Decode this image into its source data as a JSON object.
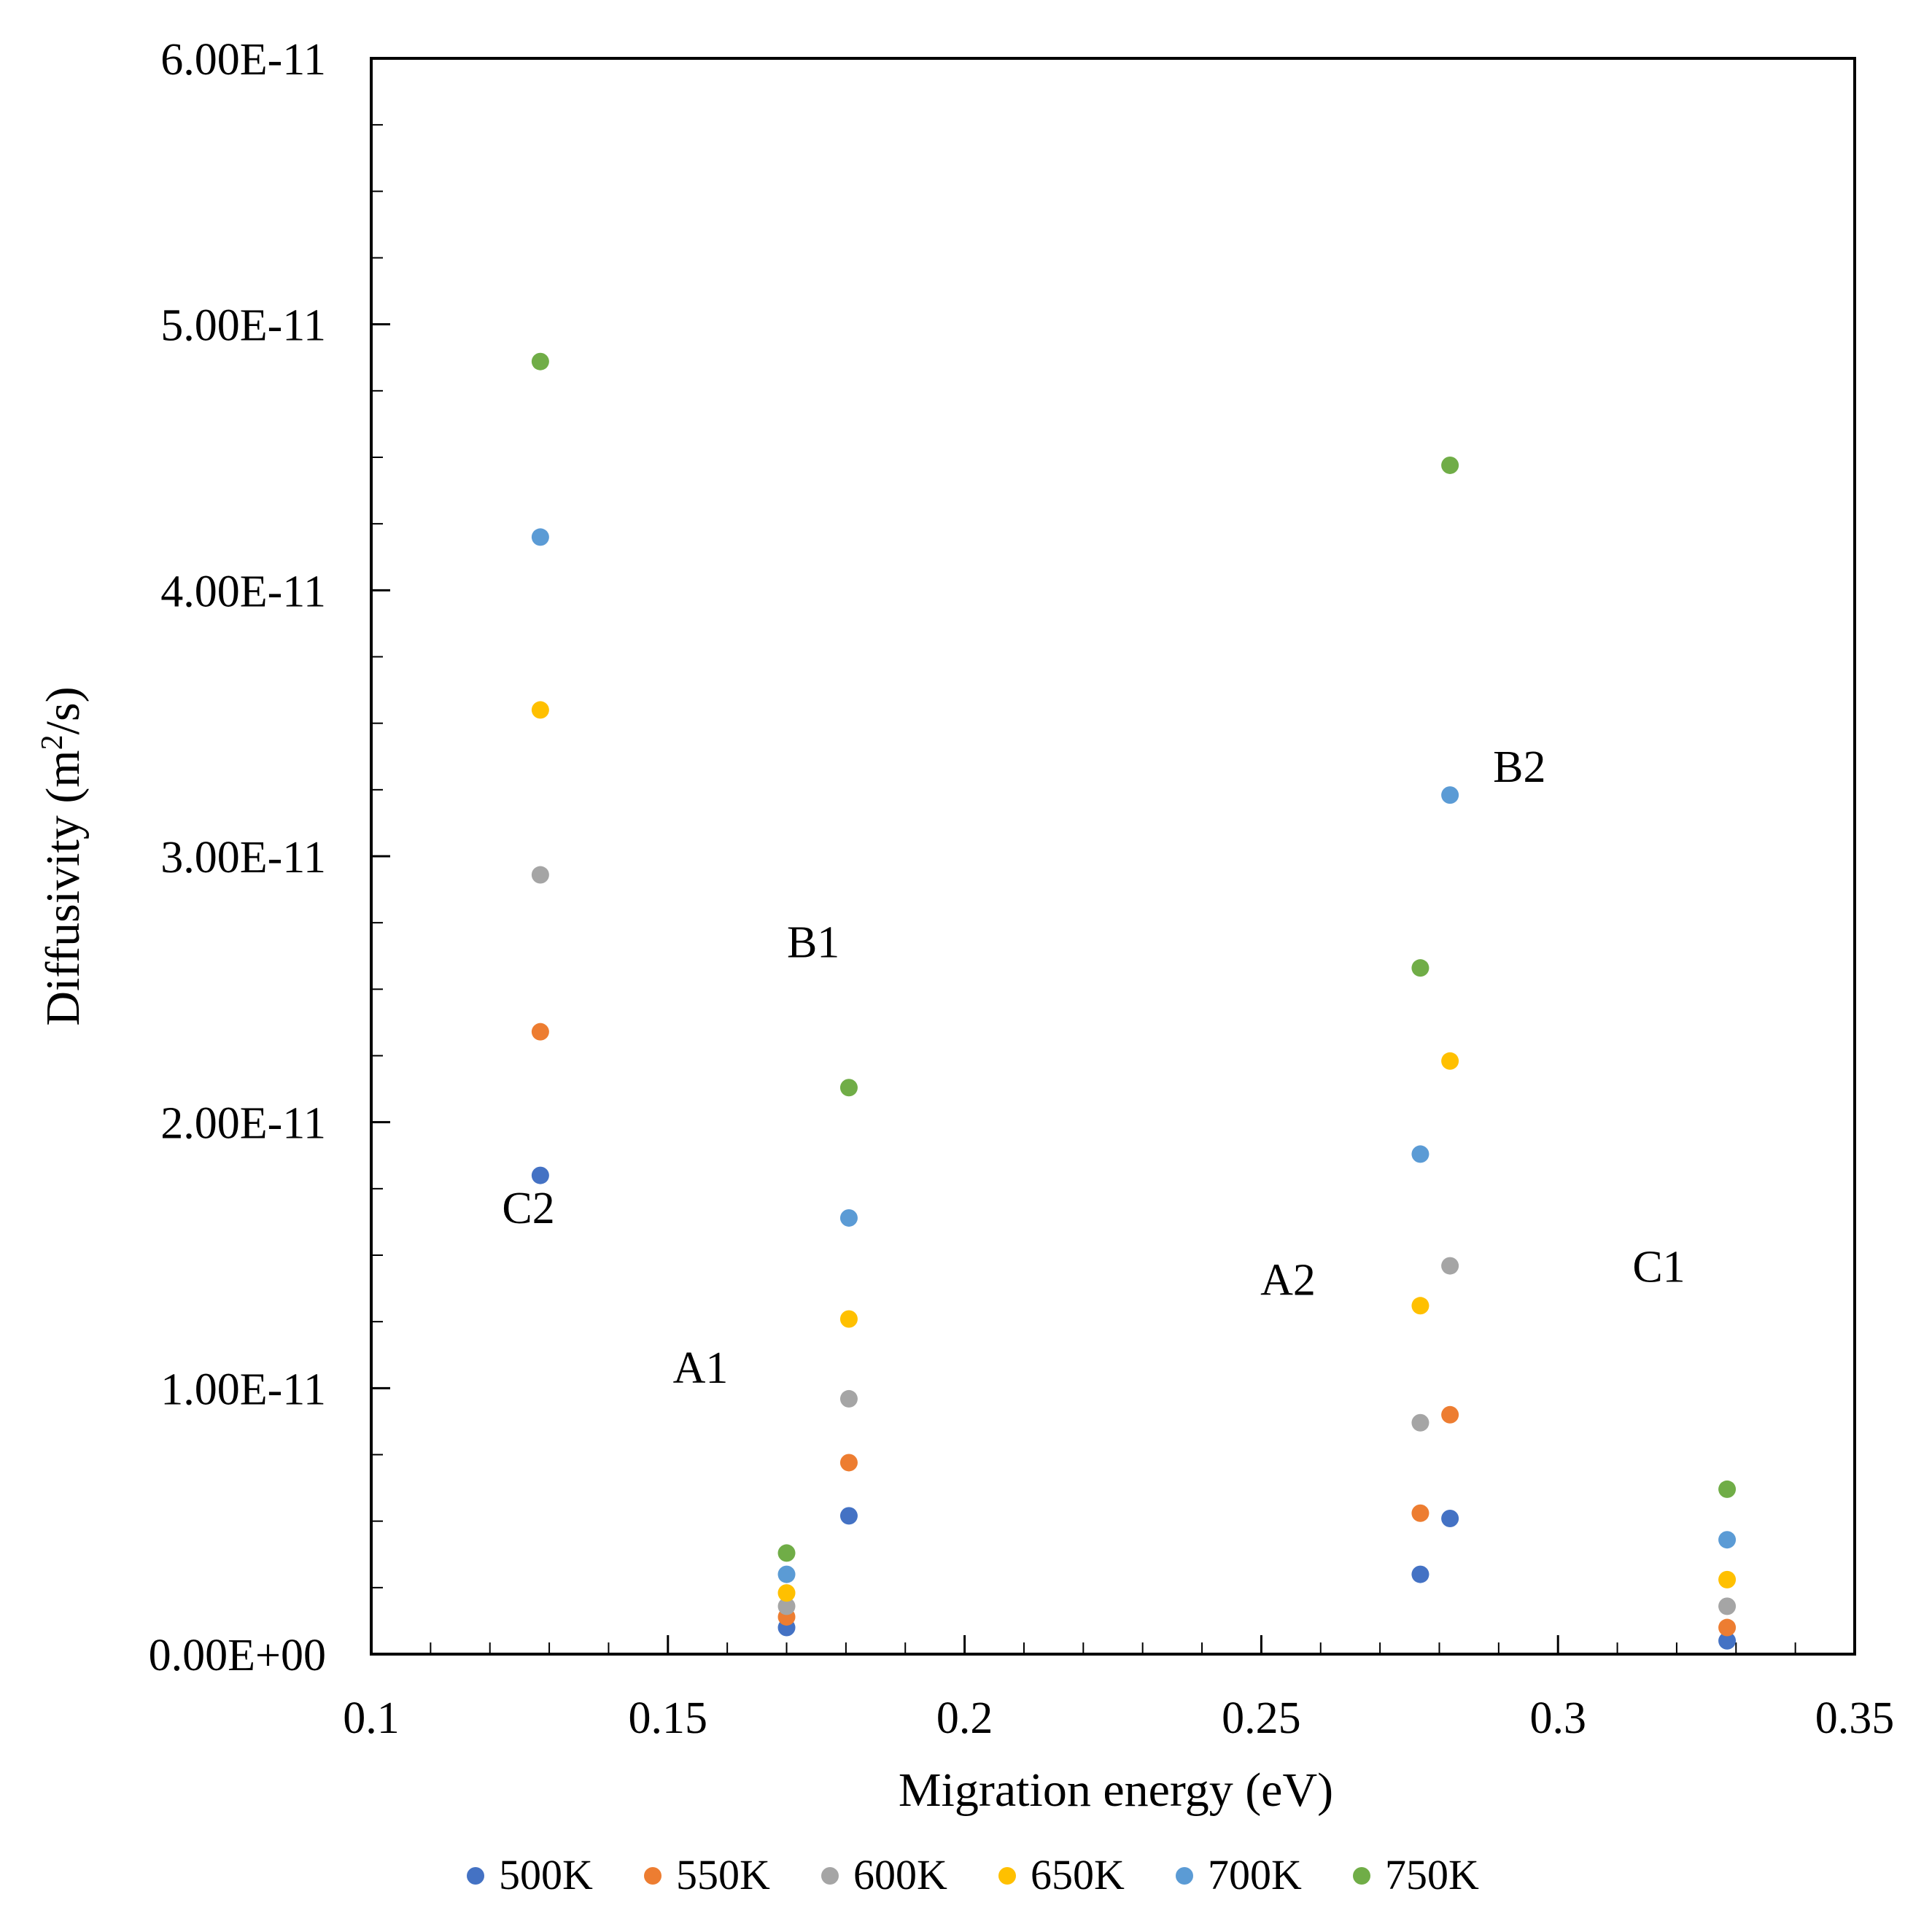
{
  "chart_data": {
    "type": "scatter",
    "title": "",
    "xlabel": "Migration energy (eV)",
    "ylabel_main": "Diffusivity (m",
    "ylabel_sup": "2",
    "ylabel_end": "/s)",
    "xlim": [
      0.1,
      0.35
    ],
    "ylim": [
      0,
      6e-11
    ],
    "x_ticks": [
      0.1,
      0.15,
      0.2,
      0.25,
      0.3,
      0.35
    ],
    "x_tick_labels": [
      "0.1",
      "0.15",
      "0.2",
      "0.25",
      "0.3",
      "0.35"
    ],
    "x_minor_step": 0.01,
    "y_ticks": [
      0,
      1e-11,
      2e-11,
      3e-11,
      4e-11,
      5e-11,
      6e-11
    ],
    "y_tick_labels": [
      "0.00E+00",
      "1.00E-11",
      "2.00E-11",
      "3.00E-11",
      "4.00E-11",
      "5.00E-11",
      "6.00E-11"
    ],
    "y_minor_step": 2.5e-12,
    "grid": false,
    "legend_placement": "bottom",
    "series": [
      {
        "name": "500K",
        "color": "#4472C4",
        "points": [
          [
            0.1285,
            1.8e-11
          ],
          [
            0.17,
            1e-12
          ],
          [
            0.1805,
            5.2e-12
          ],
          [
            0.2768,
            3e-12
          ],
          [
            0.2818,
            5.1e-12
          ],
          [
            0.3285,
            5e-13
          ]
        ]
      },
      {
        "name": "550K",
        "color": "#ED7D31",
        "points": [
          [
            0.1285,
            2.34e-11
          ],
          [
            0.17,
            1.4e-12
          ],
          [
            0.1805,
            7.2e-12
          ],
          [
            0.2768,
            5.3e-12
          ],
          [
            0.2818,
            9e-12
          ],
          [
            0.3285,
            1e-12
          ]
        ]
      },
      {
        "name": "600K",
        "color": "#A5A5A5",
        "points": [
          [
            0.1285,
            2.93e-11
          ],
          [
            0.17,
            1.8e-12
          ],
          [
            0.1805,
            9.6e-12
          ],
          [
            0.2768,
            8.7e-12
          ],
          [
            0.2818,
            1.46e-11
          ],
          [
            0.3285,
            1.8e-12
          ]
        ]
      },
      {
        "name": "650K",
        "color": "#FFC000",
        "points": [
          [
            0.1285,
            3.55e-11
          ],
          [
            0.17,
            2.3e-12
          ],
          [
            0.1805,
            1.26e-11
          ],
          [
            0.2768,
            1.31e-11
          ],
          [
            0.2818,
            2.23e-11
          ],
          [
            0.3285,
            2.8e-12
          ]
        ]
      },
      {
        "name": "700K",
        "color": "#5B9BD5",
        "points": [
          [
            0.1285,
            4.2e-11
          ],
          [
            0.17,
            3e-12
          ],
          [
            0.1805,
            1.64e-11
          ],
          [
            0.2768,
            1.88e-11
          ],
          [
            0.2818,
            3.23e-11
          ],
          [
            0.3285,
            4.3e-12
          ]
        ]
      },
      {
        "name": "750K",
        "color": "#70AD47",
        "points": [
          [
            0.1285,
            4.86e-11
          ],
          [
            0.17,
            3.8e-12
          ],
          [
            0.1805,
            2.13e-11
          ],
          [
            0.2768,
            2.58e-11
          ],
          [
            0.2818,
            4.47e-11
          ],
          [
            0.3285,
            6.2e-12
          ]
        ]
      }
    ],
    "annotations": [
      {
        "text": "C2",
        "x": 0.1265,
        "y": 1.62e-11
      },
      {
        "text": "A1",
        "x": 0.1555,
        "y": 1.02e-11
      },
      {
        "text": "B1",
        "x": 0.1745,
        "y": 2.62e-11
      },
      {
        "text": "A2",
        "x": 0.2545,
        "y": 1.35e-11
      },
      {
        "text": "B2",
        "x": 0.2935,
        "y": 3.28e-11
      },
      {
        "text": "C1",
        "x": 0.317,
        "y": 1.4e-11
      }
    ]
  }
}
